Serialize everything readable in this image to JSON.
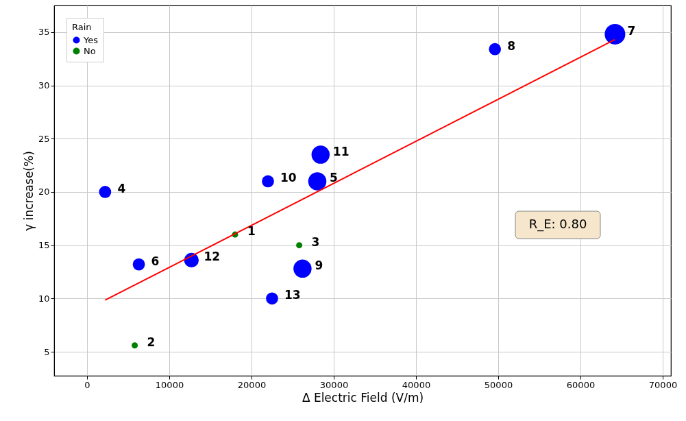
{
  "chart_data": {
    "type": "bubble",
    "xlabel": "Δ Electric Field (V/m)",
    "ylabel": "γ increase(%)",
    "legend_title": "Rain",
    "legend": "top left",
    "grid": true,
    "xlim": [
      -4000,
      71000
    ],
    "xticks": [
      0,
      10000,
      20000,
      30000,
      40000,
      50000,
      60000,
      70000
    ],
    "ylim": [
      2.75,
      37.5
    ],
    "yticks": [
      5,
      10,
      15,
      20,
      25,
      30,
      35
    ],
    "series": [
      {
        "name": "Yes",
        "color": "#0000ff",
        "x": [
          2200,
          28000,
          6300,
          64200,
          49600,
          26200,
          22000,
          28400,
          12700,
          22500
        ],
        "values": [
          20,
          21,
          13.2,
          34.8,
          33.4,
          12.8,
          21,
          23.5,
          13.6,
          10
        ],
        "sizes": [
          0.35,
          0.78,
          0.35,
          1,
          0.35,
          0.78,
          0.35,
          0.78,
          0.5,
          0.35
        ]
      },
      {
        "name": "No",
        "color": "#008000",
        "x": [
          18000,
          5800,
          25800
        ],
        "values": [
          16,
          5.6,
          15
        ],
        "sizes": [
          0.09,
          0.09,
          0.09
        ]
      },
      {
        "type": "line",
        "color": "#ff0000",
        "x": [
          2200,
          64200
        ],
        "values": [
          9.85,
          34.3
        ]
      }
    ],
    "annotations": [
      {
        "text": "1",
        "x": 18000,
        "y": 16
      },
      {
        "text": "2",
        "x": 5800,
        "y": 5.6
      },
      {
        "text": "3",
        "x": 25800,
        "y": 15
      },
      {
        "text": "4",
        "x": 2200,
        "y": 20
      },
      {
        "text": "5",
        "x": 28000,
        "y": 21
      },
      {
        "text": "6",
        "x": 6300,
        "y": 13.2
      },
      {
        "text": "7",
        "x": 64200,
        "y": 34.8
      },
      {
        "text": "8",
        "x": 49600,
        "y": 33.4
      },
      {
        "text": "9",
        "x": 26200,
        "y": 12.8
      },
      {
        "text": "10",
        "x": 22000,
        "y": 21
      },
      {
        "text": "11",
        "x": 28400,
        "y": 23.5
      },
      {
        "text": "12",
        "x": 12700,
        "y": 13.6
      },
      {
        "text": "13",
        "x": 22500,
        "y": 10
      },
      "R_E: 0.80"
    ]
  }
}
